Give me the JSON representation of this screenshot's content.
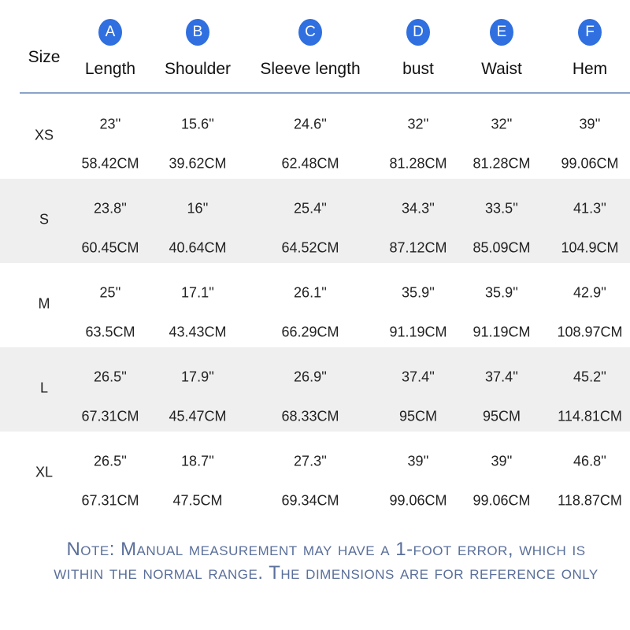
{
  "header": {
    "size_label": "Size",
    "columns": [
      {
        "letter": "A",
        "label": "Length"
      },
      {
        "letter": "B",
        "label": "Shoulder"
      },
      {
        "letter": "C",
        "label": "Sleeve length"
      },
      {
        "letter": "D",
        "label": "bust"
      },
      {
        "letter": "E",
        "label": "Waist"
      },
      {
        "letter": "F",
        "label": "Hem"
      }
    ]
  },
  "rows": [
    {
      "size": "XS",
      "values": [
        {
          "inch": "23''",
          "cm": "58.42CM"
        },
        {
          "inch": "15.6''",
          "cm": "39.62CM"
        },
        {
          "inch": "24.6''",
          "cm": "62.48CM"
        },
        {
          "inch": "32''",
          "cm": "81.28CM"
        },
        {
          "inch": "32''",
          "cm": "81.28CM"
        },
        {
          "inch": "39''",
          "cm": "99.06CM"
        }
      ]
    },
    {
      "size": "S",
      "values": [
        {
          "inch": "23.8''",
          "cm": "60.45CM"
        },
        {
          "inch": "16''",
          "cm": "40.64CM"
        },
        {
          "inch": "25.4''",
          "cm": "64.52CM"
        },
        {
          "inch": "34.3''",
          "cm": "87.12CM"
        },
        {
          "inch": "33.5''",
          "cm": "85.09CM"
        },
        {
          "inch": "41.3''",
          "cm": "104.9CM"
        }
      ]
    },
    {
      "size": "M",
      "values": [
        {
          "inch": "25''",
          "cm": "63.5CM"
        },
        {
          "inch": "17.1''",
          "cm": "43.43CM"
        },
        {
          "inch": "26.1''",
          "cm": "66.29CM"
        },
        {
          "inch": "35.9''",
          "cm": "91.19CM"
        },
        {
          "inch": "35.9''",
          "cm": "91.19CM"
        },
        {
          "inch": "42.9''",
          "cm": "108.97CM"
        }
      ]
    },
    {
      "size": "L",
      "values": [
        {
          "inch": "26.5''",
          "cm": "67.31CM"
        },
        {
          "inch": "17.9''",
          "cm": "45.47CM"
        },
        {
          "inch": "26.9''",
          "cm": "68.33CM"
        },
        {
          "inch": "37.4''",
          "cm": "95CM"
        },
        {
          "inch": "37.4''",
          "cm": "95CM"
        },
        {
          "inch": "45.2''",
          "cm": "114.81CM"
        }
      ]
    },
    {
      "size": "XL",
      "values": [
        {
          "inch": "26.5''",
          "cm": "67.31CM"
        },
        {
          "inch": "18.7''",
          "cm": "47.5CM"
        },
        {
          "inch": "27.3''",
          "cm": "69.34CM"
        },
        {
          "inch": "39''",
          "cm": "99.06CM"
        },
        {
          "inch": "39''",
          "cm": "99.06CM"
        },
        {
          "inch": "46.8''",
          "cm": "118.87CM"
        }
      ]
    }
  ],
  "note": {
    "lines": [
      "Note: Manual measurement may have a 1-foot error, which is",
      "within the normal range. The dimensions are for reference only"
    ]
  }
}
